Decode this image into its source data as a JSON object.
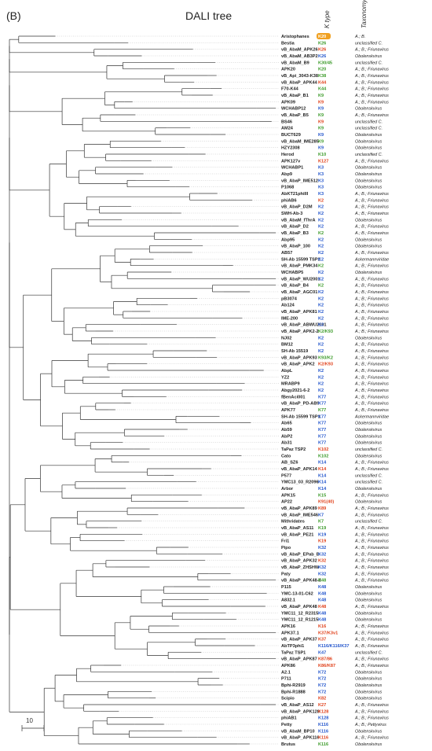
{
  "panel_label": "(B)",
  "title": "DALI tree",
  "column_headers": {
    "ktype": "K type",
    "taxonomy": "Taxonomy"
  },
  "scale_label": "10",
  "colors": {
    "blue": "#2255cc",
    "green": "#3a9a28",
    "red": "#e0401a",
    "highlight": "#f0a020"
  },
  "leaves": [
    {
      "name": "Aristophanes",
      "k": "K20",
      "kc": "hl",
      "tax": "A.; B."
    },
    {
      "name": "Bestia",
      "k": "K26",
      "kc": "green",
      "tax": "unclassified C."
    },
    {
      "name": "vB_AbaM_APK26",
      "k": "K26",
      "kc": "red",
      "tax": "A.; B.; Friunavirus"
    },
    {
      "name": "vB_AbaM_AB3P2",
      "k": "K26",
      "kc": "blue",
      "tax": "Obolenskvirus"
    },
    {
      "name": "vB_AbaM_B9",
      "k": "K30/45",
      "kc": "green",
      "tax": "unclassified C."
    },
    {
      "name": "APK20",
      "k": "K20",
      "kc": "green",
      "tax": "A.; B.; Friunavirus"
    },
    {
      "name": "vB_Api_3043-K38",
      "k": "K38",
      "kc": "green",
      "tax": "A.; B.; Friunavirus"
    },
    {
      "name": "vB_AbaP_APK44",
      "k": "K44",
      "kc": "red",
      "tax": "A.; B.; Friunavirus"
    },
    {
      "name": "F70-K44",
      "k": "K44",
      "kc": "green",
      "tax": "A.; B.; Friunavirus"
    },
    {
      "name": "vB_AbaP_B1",
      "k": "K9",
      "kc": "green",
      "tax": "A.; B.; Friunavirus"
    },
    {
      "name": "APK09",
      "k": "K9",
      "kc": "red",
      "tax": "A.; B.; Friunavirus"
    },
    {
      "name": "WCHABP12",
      "k": "K9",
      "kc": "blue",
      "tax": "Obolenskvirus"
    },
    {
      "name": "vB_AbaP_B5",
      "k": "K9",
      "kc": "green",
      "tax": "A.; B.; Friunavirus"
    },
    {
      "name": "BS46",
      "k": "K9",
      "kc": "red",
      "tax": "unclassified C."
    },
    {
      "name": "AM24",
      "k": "K9",
      "kc": "green",
      "tax": "unclassified C."
    },
    {
      "name": "BUCT629",
      "k": "K9",
      "kc": "blue",
      "tax": "Obolenskvirus"
    },
    {
      "name": "vB_AbaM_IME285",
      "k": "K9",
      "kc": "green",
      "tax": "Obolenskvirus"
    },
    {
      "name": "HZY2308",
      "k": "K9",
      "kc": "blue",
      "tax": "Obolenskvirus"
    },
    {
      "name": "Herod",
      "k": "K10",
      "kc": "green",
      "tax": "unclassified C."
    },
    {
      "name": "APK127v",
      "k": "K127",
      "kc": "red",
      "tax": "A.; B.; Friunavirus"
    },
    {
      "name": "WCHABP1",
      "k": "K3",
      "kc": "blue",
      "tax": "Obolenskvirus"
    },
    {
      "name": "Abp9",
      "k": "K3",
      "kc": "blue",
      "tax": "Obolenskvirus"
    },
    {
      "name": "vB_AbaP_IME512",
      "k": "K3",
      "kc": "blue",
      "tax": "Obolenskvirus"
    },
    {
      "name": "P1068",
      "k": "K3",
      "kc": "blue",
      "tax": "Obolenskvirus"
    },
    {
      "name": "AbKT21phiIII",
      "k": "K3",
      "kc": "blue",
      "tax": "A.; B.; Friunavirus"
    },
    {
      "name": "phiAB6",
      "k": "K2",
      "kc": "red",
      "tax": "A.; B.; Friunavirus"
    },
    {
      "name": "vB_AbaP_D2M",
      "k": "K2",
      "kc": "blue",
      "tax": "A.; B.; Friunavirus"
    },
    {
      "name": "SWH-Ab-3",
      "k": "K2",
      "kc": "blue",
      "tax": "A.; B.; Friunavirus"
    },
    {
      "name": "vB_AbaM_fThrA",
      "k": "K2",
      "kc": "blue",
      "tax": "Obolenskvirus"
    },
    {
      "name": "vB_AbaP_D2",
      "k": "K2",
      "kc": "blue",
      "tax": "A.; B.; Friunavirus"
    },
    {
      "name": "vB_AbaP_B3",
      "k": "K2",
      "kc": "green",
      "tax": "A.; B.; Friunavirus"
    },
    {
      "name": "Abp95",
      "k": "K2",
      "kc": "blue",
      "tax": "Obolenskvirus"
    },
    {
      "name": "vB_AbaP_100",
      "k": "K2",
      "kc": "blue",
      "tax": "Obolenskvirus"
    },
    {
      "name": "AB57",
      "k": "K2",
      "kc": "blue",
      "tax": "A.; B.; Friunavirus"
    },
    {
      "name": "SH-Ab 15599 TSP2",
      "k": "K2",
      "kc": "blue",
      "tax": "Ackermannviridae"
    },
    {
      "name": "vB_AbaP_PMK34",
      "k": "K2",
      "kc": "green",
      "tax": "A.; B.; Friunavirus"
    },
    {
      "name": "WCHABP5",
      "k": "K2",
      "kc": "blue",
      "tax": "Obolenskvirus"
    },
    {
      "name": "vB_AbaP_WU2001",
      "k": "K2",
      "kc": "blue",
      "tax": "A.; B.; Friunavirus"
    },
    {
      "name": "vB_AbaP_B4",
      "k": "K2",
      "kc": "green",
      "tax": "A.; B.; Friunavirus"
    },
    {
      "name": "vB_AbaP_AGC01",
      "k": "K2",
      "kc": "blue",
      "tax": "A.; B.; Friunavirus"
    },
    {
      "name": "pB3074",
      "k": "K2",
      "kc": "blue",
      "tax": "A.; B.; Friunavirus"
    },
    {
      "name": "Ab124",
      "k": "K2",
      "kc": "blue",
      "tax": "A.; B.; Friunavirus"
    },
    {
      "name": "vB_AbaP_APK81",
      "k": "K2",
      "kc": "blue",
      "tax": "A.; B.; Friunavirus"
    },
    {
      "name": "IME-200",
      "k": "K2",
      "kc": "blue",
      "tax": "A.; B.; Friunavirus"
    },
    {
      "name": "vB_AbaP_ABWU2101",
      "k": "K2",
      "kc": "blue",
      "tax": "A.; B.; Friunavirus"
    },
    {
      "name": "vB_AbaP_APK2-2",
      "k": "K2/K93",
      "kc": "green",
      "tax": "A.; B.; Friunavirus"
    },
    {
      "name": "NJ02",
      "k": "K2",
      "kc": "blue",
      "tax": "Obolenskvirus"
    },
    {
      "name": "BM12",
      "k": "K2",
      "kc": "blue",
      "tax": "A.; B.; Friunavirus"
    },
    {
      "name": "SH-Ab 15519",
      "k": "K2",
      "kc": "blue",
      "tax": "A.; B.; Friunavirus"
    },
    {
      "name": "vB_AbaP_APK93",
      "k": "K93/K2",
      "kc": "green",
      "tax": "A.; B.; Friunavirus"
    },
    {
      "name": "vB_AbaP_APK2",
      "k": "K2/K93",
      "kc": "red",
      "tax": "A.; B.; Friunavirus"
    },
    {
      "name": "AbpL",
      "k": "K2",
      "kc": "blue",
      "tax": "A.; B.; Friunavirus"
    },
    {
      "name": "YZ2",
      "k": "K2",
      "kc": "blue",
      "tax": "A.; B.; Friunavirus"
    },
    {
      "name": "MRABP9",
      "k": "K2",
      "kc": "blue",
      "tax": "A.; B.; Friunavirus"
    },
    {
      "name": "Abgy2021-6-2",
      "k": "K2",
      "kc": "blue",
      "tax": "A.; B.; Friunavirus"
    },
    {
      "name": "fBenAci001",
      "k": "K77",
      "kc": "blue",
      "tax": "A.; B.; Friunavirus"
    },
    {
      "name": "vB_AbaP_PD-AB9",
      "k": "K77",
      "kc": "blue",
      "tax": "A.; B.; Friunavirus"
    },
    {
      "name": "APK77",
      "k": "K77",
      "kc": "green",
      "tax": "A.; B.; Friunavirus"
    },
    {
      "name": "SH-Ab 15599 TSP1",
      "k": "K77",
      "kc": "blue",
      "tax": "Ackermannviridae"
    },
    {
      "name": "Ab65",
      "k": "K77",
      "kc": "blue",
      "tax": "Obolenskvirus"
    },
    {
      "name": "Ab59",
      "k": "K77",
      "kc": "blue",
      "tax": "Obolenskvirus"
    },
    {
      "name": "AbP2",
      "k": "K77",
      "kc": "blue",
      "tax": "Obolenskvirus"
    },
    {
      "name": "Ab31",
      "k": "K77",
      "kc": "blue",
      "tax": "Obolenskvirus"
    },
    {
      "name": "TaPaz TSP2",
      "k": "K102",
      "kc": "red",
      "tax": "unclassified C."
    },
    {
      "name": "Cato",
      "k": "K102",
      "kc": "green",
      "tax": "Obolenskvirus"
    },
    {
      "name": "AB_SZ6",
      "k": "K14",
      "kc": "blue",
      "tax": "A.; B.; Friunavirus"
    },
    {
      "name": "vB_AbaP_APK14",
      "k": "K14",
      "kc": "red",
      "tax": "A.; B.; Friunavirus"
    },
    {
      "name": "P577",
      "k": "K14",
      "kc": "blue",
      "tax": "unclassified C."
    },
    {
      "name": "YMC13_03_R2096",
      "k": "K14",
      "kc": "blue",
      "tax": "unclassified C."
    },
    {
      "name": "Arbor",
      "k": "K14",
      "kc": "blue",
      "tax": "Obolenskvirus"
    },
    {
      "name": "APK15",
      "k": "K15",
      "kc": "green",
      "tax": "A.; B.; Friunavirus"
    },
    {
      "name": "AP22",
      "k": "K91(40)",
      "kc": "red",
      "tax": "Obolenskvirus"
    },
    {
      "name": "vB_AbaP_APK89",
      "k": "K89",
      "kc": "red",
      "tax": "A.; B.; Friunavirus"
    },
    {
      "name": "vB_AbaP_IME546",
      "k": "K7",
      "kc": "blue",
      "tax": "A.; B.; Friunavirus"
    },
    {
      "name": "Mithridates",
      "k": "K7",
      "kc": "green",
      "tax": "unclassified C."
    },
    {
      "name": "vB_AbaP_AS11",
      "k": "K19",
      "kc": "green",
      "tax": "A.; B.; Friunavirus"
    },
    {
      "name": "vB_AbaP_PE21",
      "k": "K19",
      "kc": "blue",
      "tax": "A.; B.; Friunavirus"
    },
    {
      "name": "Fri1",
      "k": "K19",
      "kc": "red",
      "tax": "A.; B.; Friunavirus"
    },
    {
      "name": "Pipo",
      "k": "K32",
      "kc": "blue",
      "tax": "A.; B.; Friunavirus"
    },
    {
      "name": "vB_AbaP_EPab_B",
      "k": "K32",
      "kc": "blue",
      "tax": "A.; B.; Friunavirus"
    },
    {
      "name": "vB_AbaP_APK32",
      "k": "K32",
      "kc": "red",
      "tax": "A.; B.; Friunavirus"
    },
    {
      "name": "vB_AbaP_ZHSHW",
      "k": "K32",
      "kc": "blue",
      "tax": "A.; B.; Friunavirus"
    },
    {
      "name": "Paty",
      "k": "K32",
      "kc": "blue",
      "tax": "A.; B.; Friunavirus"
    },
    {
      "name": "vB_AbaP_APK48-3",
      "k": "K48",
      "kc": "green",
      "tax": "A.; B.; Friunavirus"
    },
    {
      "name": "P115",
      "k": "K48",
      "kc": "blue",
      "tax": "Obolenskvirus"
    },
    {
      "name": "YMC-13-01-C62",
      "k": "K48",
      "kc": "blue",
      "tax": "Obolenskvirus"
    },
    {
      "name": "A832.1",
      "k": "K48",
      "kc": "blue",
      "tax": "Obolenskvirus"
    },
    {
      "name": "vB_AbaP_APK48",
      "k": "K48",
      "kc": "red",
      "tax": "A.; B.; Friunavirus"
    },
    {
      "name": "YMC11_12_R2315",
      "k": "K48",
      "kc": "blue",
      "tax": "Obolenskvirus"
    },
    {
      "name": "YMC11_12_R1215",
      "k": "K48",
      "kc": "blue",
      "tax": "Obolenskvirus"
    },
    {
      "name": "APK16",
      "k": "K16",
      "kc": "red",
      "tax": "A.; B.; Friunavirus"
    },
    {
      "name": "APK37.1",
      "k": "K37/K3v1",
      "kc": "red",
      "tax": "A.; B.; Friunavirus"
    },
    {
      "name": "vB_AbaP_APK37",
      "k": "K37",
      "kc": "red",
      "tax": "A.; B.; Friunavirus"
    },
    {
      "name": "AbTP3phi1",
      "k": "K116/K116/K37",
      "kc": "blue",
      "tax": "A.; B.; Friunavirus"
    },
    {
      "name": "TaPaz TSP1",
      "k": "K47",
      "kc": "blue",
      "tax": "unclassified C."
    },
    {
      "name": "vB_AbaP_APK87",
      "k": "K87/86",
      "kc": "red",
      "tax": "A.; B.; Friunavirus"
    },
    {
      "name": "APK86",
      "k": "K86/K87",
      "kc": "red",
      "tax": "A.; B.; Friunavirus"
    },
    {
      "name": "A2.1",
      "k": "K72",
      "kc": "blue",
      "tax": "Obolenskvirus"
    },
    {
      "name": "P711",
      "k": "K72",
      "kc": "blue",
      "tax": "Obolenskvirus"
    },
    {
      "name": "Bphi-R2919",
      "k": "K72",
      "kc": "blue",
      "tax": "Obolenskvirus"
    },
    {
      "name": "Bphi-R1888",
      "k": "K72",
      "kc": "blue",
      "tax": "Obolenskvirus"
    },
    {
      "name": "Scipio",
      "k": "K82",
      "kc": "red",
      "tax": "Obolenskvirus"
    },
    {
      "name": "vB_AbaP_AS12",
      "k": "K27",
      "kc": "red",
      "tax": "A.; B.; Friunavirus"
    },
    {
      "name": "vB_AbaP_APK128",
      "k": "K128",
      "kc": "red",
      "tax": "A.; B.; Friunavirus"
    },
    {
      "name": "phiAB1",
      "k": "K128",
      "kc": "blue",
      "tax": "A.; B.; Friunavirus"
    },
    {
      "name": "Petty",
      "k": "K116",
      "kc": "blue",
      "tax": "A.; B.; Pettyvirus"
    },
    {
      "name": "vB_AbaM_BP10",
      "k": "K116",
      "kc": "blue",
      "tax": "Obolenskvirus"
    },
    {
      "name": "vB_AbaP_APK116",
      "k": "K116",
      "kc": "red",
      "tax": "A.; B.; Friunavirus"
    },
    {
      "name": "Brutus",
      "k": "K116",
      "kc": "green",
      "tax": "Obolenskvirus"
    }
  ]
}
